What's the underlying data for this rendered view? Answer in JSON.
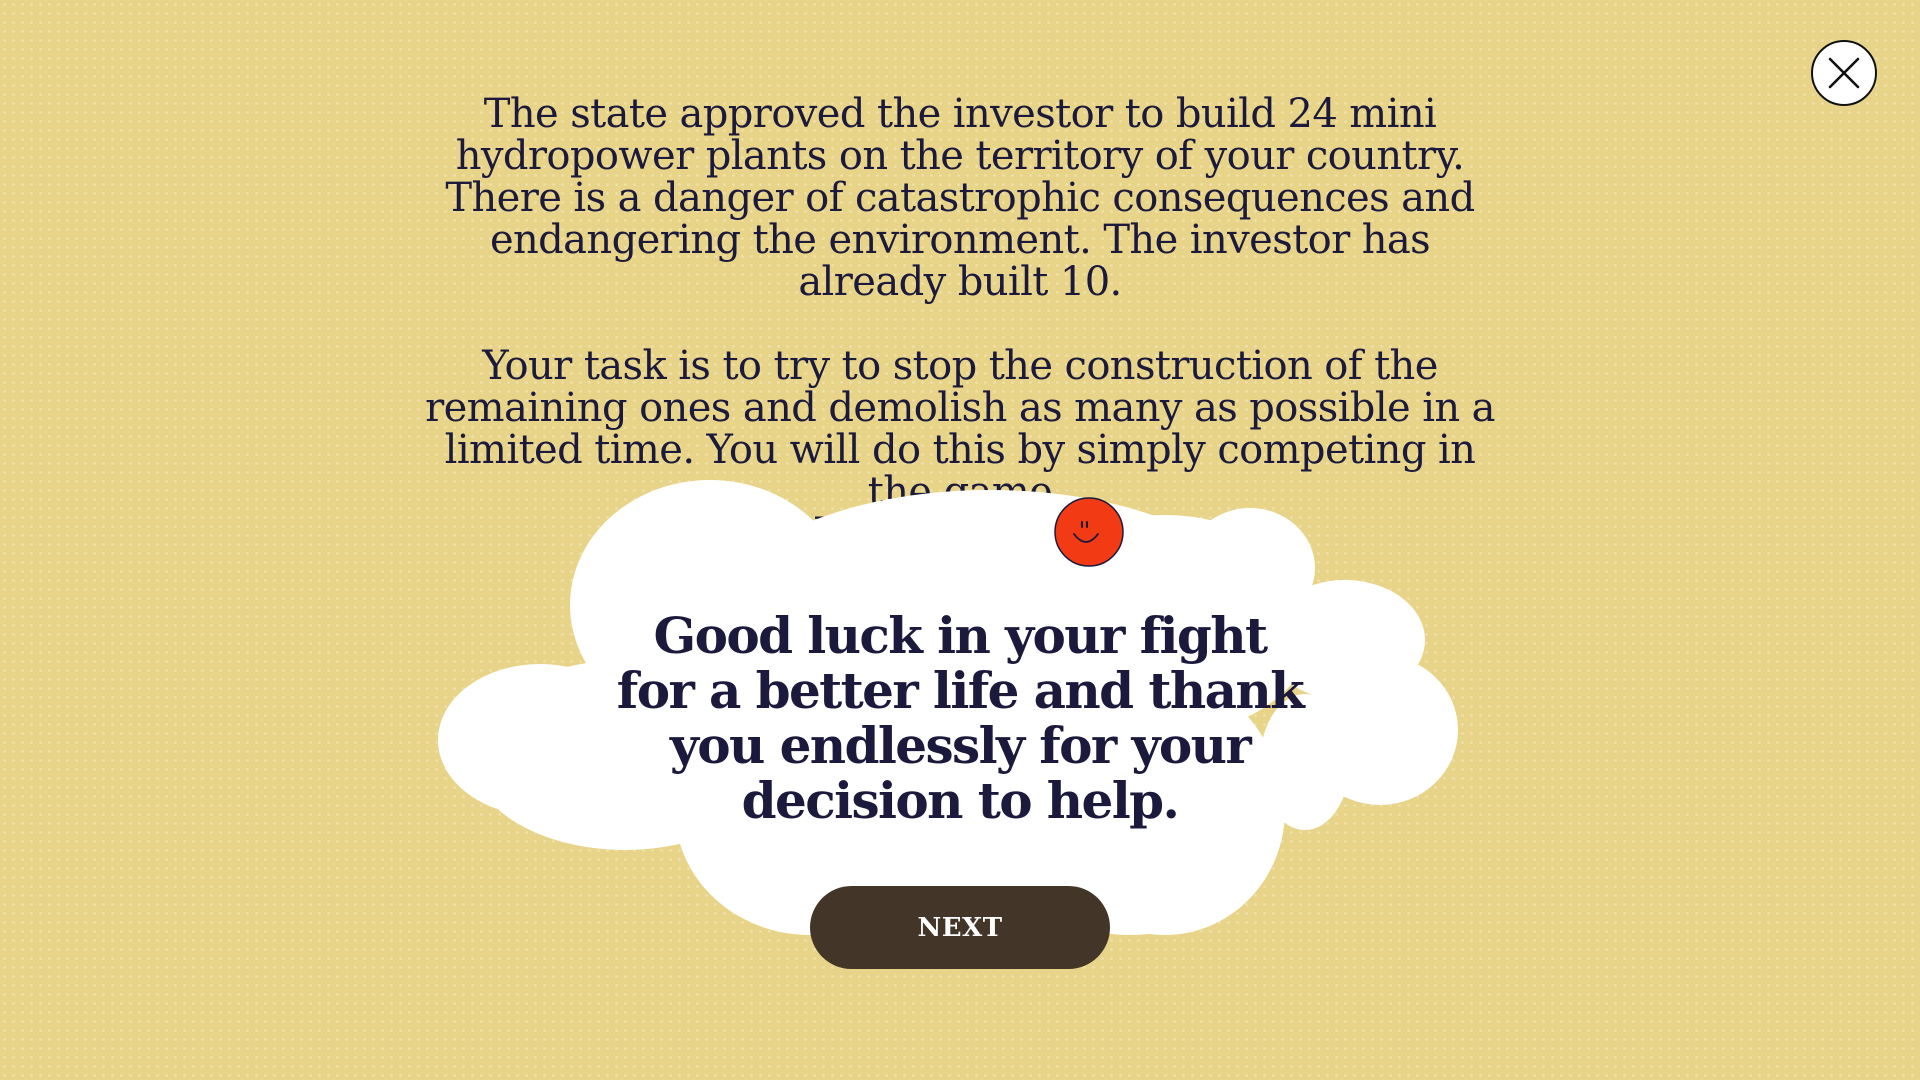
{
  "close": {
    "icon": "close-icon"
  },
  "intro": {
    "paragraph1": "The state approved the investor to build 24 mini hydropower plants on the territory of your country. There is a danger of catastrophic consequences and endangering the environment. The investor has already built 10.",
    "paragraph2": "Your task is to try to stop the construction of the remaining ones and demolish as many as possible in a limited time. You will do this by simply competing in the game",
    "game_name": "Rock Paper Scissors."
  },
  "cloud": {
    "smiley_icon": "smiley-face-icon",
    "headline_lines": [
      "Good luck in your fight",
      "for a better life and thank",
      "you endlessly for your",
      "decision to help."
    ]
  },
  "next_button": {
    "label": "NEXT"
  },
  "colors": {
    "background": "#e8d488",
    "text": "#1c1a3c",
    "cloud": "#ffffff",
    "button": "#433628",
    "smiley": "#f23a14"
  }
}
